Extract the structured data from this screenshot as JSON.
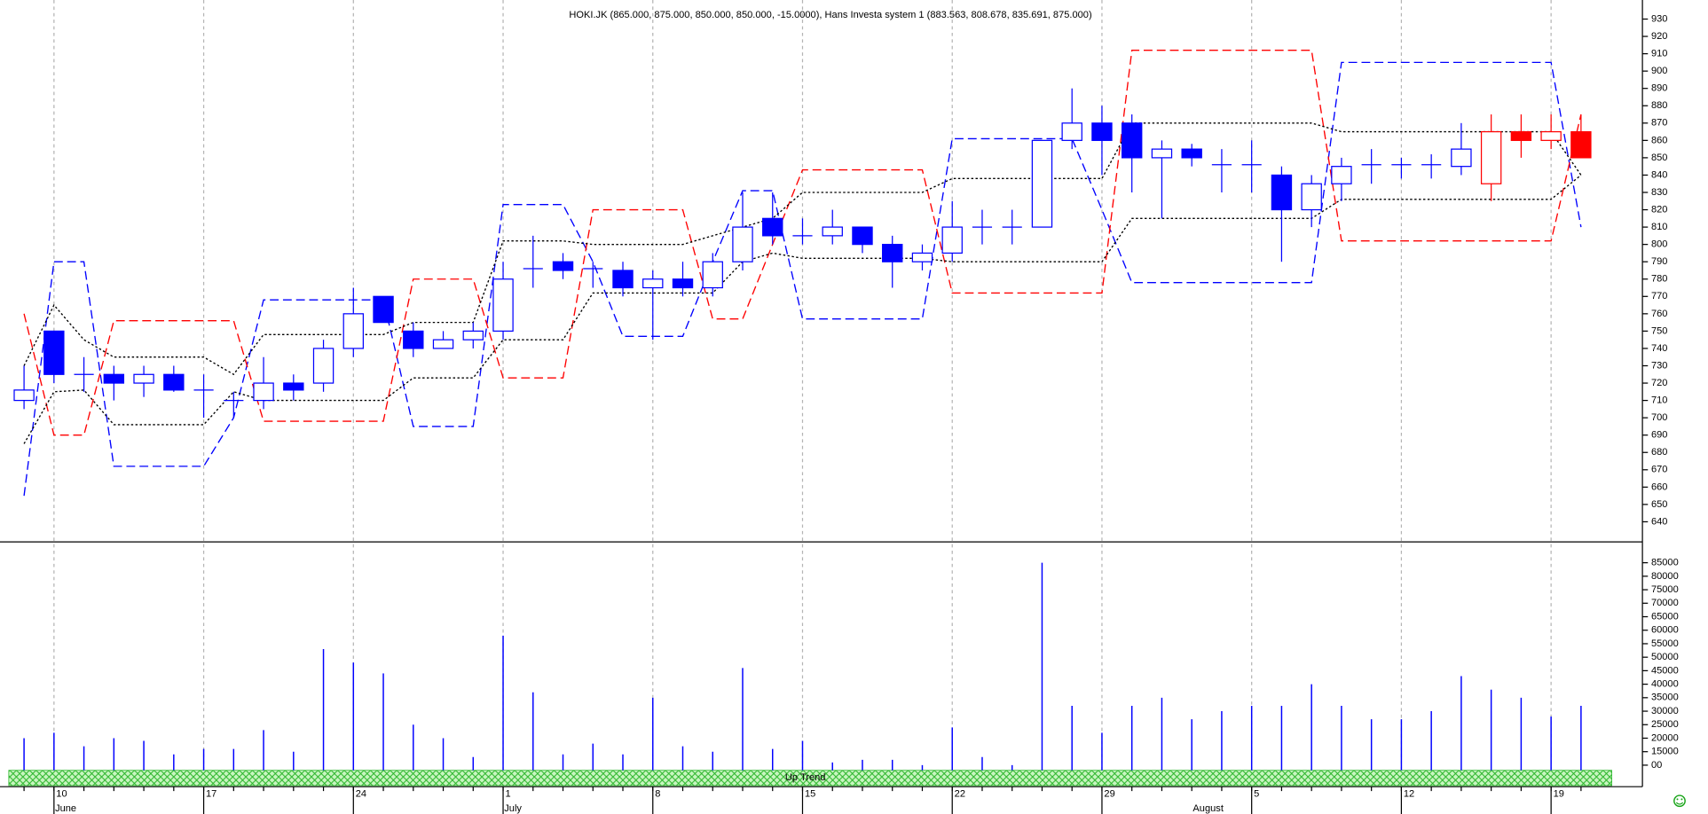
{
  "chart_data": {
    "type": "candlestick",
    "title": "HOKI.JK (865.000, 875.000, 850.000, 850.000, -15.0000), Hans Investa system 1 (883.563, 808.678, 835.691, 875.000)",
    "trend_label": "Up Trend",
    "categories": [
      null,
      "10",
      null,
      null,
      null,
      null,
      "17",
      null,
      null,
      null,
      null,
      "24",
      null,
      null,
      null,
      null,
      "1",
      null,
      null,
      null,
      null,
      "8",
      null,
      null,
      null,
      null,
      "15",
      null,
      null,
      null,
      null,
      "22",
      null,
      null,
      null,
      null,
      "29",
      null,
      null,
      null,
      null,
      "5",
      null,
      null,
      null,
      null,
      "12",
      null,
      null,
      null,
      null,
      "19",
      null
    ],
    "month_labels": [
      null,
      "June",
      null,
      null,
      null,
      null,
      null,
      null,
      null,
      null,
      null,
      null,
      null,
      null,
      null,
      null,
      "July",
      null,
      null,
      null,
      null,
      null,
      null,
      null,
      null,
      null,
      null,
      null,
      null,
      null,
      null,
      null,
      null,
      null,
      null,
      null,
      null,
      null,
      null,
      "August",
      null,
      null,
      null,
      null,
      null,
      null,
      null,
      null,
      null,
      null,
      null,
      null,
      null
    ],
    "open": [
      710,
      750,
      725,
      725,
      720,
      725,
      716,
      710,
      710,
      720,
      720,
      740,
      770,
      750,
      740,
      745,
      750,
      786,
      790,
      786,
      785,
      775,
      780,
      775,
      790,
      815,
      805,
      805,
      810,
      800,
      790,
      795,
      810,
      810,
      810,
      860,
      870,
      870,
      850,
      855,
      846,
      846,
      840,
      820,
      835,
      846,
      846,
      846,
      845,
      835,
      865,
      860,
      865
    ],
    "high": [
      730,
      750,
      735,
      730,
      730,
      730,
      725,
      715,
      735,
      725,
      745,
      775,
      770,
      755,
      750,
      755,
      790,
      805,
      795,
      790,
      790,
      785,
      790,
      795,
      830,
      830,
      815,
      820,
      810,
      805,
      800,
      825,
      820,
      820,
      860,
      890,
      880,
      875,
      860,
      858,
      855,
      860,
      845,
      840,
      850,
      855,
      850,
      852,
      870,
      875,
      875,
      875,
      875
    ],
    "low": [
      705,
      720,
      715,
      710,
      712,
      715,
      700,
      700,
      705,
      710,
      715,
      735,
      755,
      735,
      740,
      740,
      745,
      775,
      780,
      775,
      770,
      745,
      770,
      770,
      785,
      800,
      800,
      800,
      795,
      775,
      785,
      790,
      800,
      800,
      810,
      855,
      840,
      830,
      815,
      845,
      830,
      830,
      790,
      810,
      825,
      835,
      838,
      838,
      840,
      825,
      850,
      855,
      850
    ],
    "close": [
      716,
      725,
      725,
      720,
      725,
      716,
      716,
      710,
      720,
      716,
      740,
      760,
      755,
      740,
      745,
      750,
      780,
      786,
      785,
      786,
      775,
      780,
      775,
      790,
      810,
      805,
      805,
      810,
      800,
      790,
      795,
      810,
      810,
      810,
      860,
      870,
      860,
      850,
      855,
      850,
      846,
      846,
      820,
      835,
      845,
      846,
      846,
      846,
      855,
      865,
      860,
      865,
      850
    ],
    "colors": [
      "#0000ff",
      "#0000ff",
      "#0000ff",
      "#0000ff",
      "#0000ff",
      "#0000ff",
      "#0000ff",
      "#0000ff",
      "#0000ff",
      "#0000ff",
      "#0000ff",
      "#0000ff",
      "#0000ff",
      "#0000ff",
      "#0000ff",
      "#0000ff",
      "#0000ff",
      "#0000ff",
      "#0000ff",
      "#0000ff",
      "#0000ff",
      "#0000ff",
      "#0000ff",
      "#0000ff",
      "#0000ff",
      "#0000ff",
      "#0000ff",
      "#0000ff",
      "#0000ff",
      "#0000ff",
      "#0000ff",
      "#0000ff",
      "#0000ff",
      "#0000ff",
      "#0000ff",
      "#0000ff",
      "#0000ff",
      "#0000ff",
      "#0000ff",
      "#0000ff",
      "#0000ff",
      "#0000ff",
      "#0000ff",
      "#0000ff",
      "#0000ff",
      "#0000ff",
      "#0000ff",
      "#0000ff",
      "#0000ff",
      "#ff0000",
      "#ff0000",
      "#ff0000",
      "#ff0000"
    ],
    "bands": [
      {
        "color": "#0000ff",
        "dash": "dashed",
        "values": [
          655,
          790,
          790,
          672,
          672,
          672,
          672,
          700,
          768,
          768,
          768,
          768,
          768,
          695,
          695,
          695,
          823,
          823,
          823,
          790,
          747,
          747,
          747,
          790,
          831,
          831,
          757,
          757,
          757,
          757,
          757,
          861,
          861,
          861,
          861,
          861,
          820,
          778,
          778,
          778,
          778,
          778,
          778,
          778,
          905,
          905,
          905,
          905,
          905,
          905,
          905,
          905,
          810
        ]
      },
      {
        "color": "#ff0000",
        "dash": "dashed",
        "values": [
          760,
          690,
          690,
          756,
          756,
          756,
          756,
          756,
          698,
          698,
          698,
          698,
          698,
          780,
          780,
          780,
          723,
          723,
          723,
          820,
          820,
          820,
          820,
          757,
          757,
          800,
          843,
          843,
          843,
          843,
          843,
          772,
          772,
          772,
          772,
          772,
          772,
          912,
          912,
          912,
          912,
          912,
          912,
          912,
          802,
          802,
          802,
          802,
          802,
          802,
          802,
          802,
          875
        ]
      },
      {
        "color": "#000000",
        "dash": "dotted",
        "values": [
          730,
          765,
          745,
          735,
          735,
          735,
          735,
          725,
          748,
          748,
          748,
          748,
          748,
          755,
          755,
          755,
          802,
          802,
          802,
          800,
          800,
          800,
          800,
          805,
          810,
          815,
          830,
          830,
          830,
          830,
          830,
          838,
          838,
          838,
          838,
          838,
          838,
          870,
          870,
          870,
          870,
          870,
          870,
          870,
          865,
          865,
          865,
          865,
          865,
          865,
          865,
          865,
          840
        ]
      },
      {
        "color": "#000000",
        "dash": "dotted",
        "values": [
          685,
          715,
          716,
          696,
          696,
          696,
          696,
          715,
          710,
          710,
          710,
          710,
          710,
          723,
          723,
          723,
          745,
          745,
          745,
          772,
          772,
          772,
          772,
          772,
          790,
          795,
          792,
          792,
          792,
          792,
          792,
          790,
          790,
          790,
          790,
          790,
          790,
          815,
          815,
          815,
          815,
          815,
          815,
          815,
          826,
          826,
          826,
          826,
          826,
          826,
          826,
          826,
          840
        ]
      }
    ],
    "ylim": [
      629,
      941
    ],
    "yticks": [
      640,
      650,
      660,
      670,
      680,
      690,
      700,
      710,
      720,
      730,
      740,
      750,
      760,
      770,
      780,
      790,
      800,
      810,
      820,
      830,
      840,
      850,
      860,
      870,
      880,
      890,
      900,
      910,
      920,
      930
    ],
    "grid": true,
    "volume": {
      "color": "#0000ff",
      "values": [
        20000,
        22000,
        17000,
        20000,
        19000,
        14000,
        16000,
        16000,
        23000,
        15000,
        53000,
        48000,
        44000,
        25000,
        20000,
        13000,
        58000,
        37000,
        14000,
        18000,
        14000,
        35000,
        17000,
        15000,
        46000,
        16000,
        19000,
        11000,
        12000,
        12000,
        10000,
        24000,
        13000,
        10000,
        85000,
        32000,
        22000,
        32000,
        35000,
        27000,
        30000,
        32000,
        32000,
        40000,
        32000,
        27000,
        27000,
        30000,
        43000,
        38000,
        35000,
        28000,
        32000
      ],
      "ylim": [
        8100,
        92300
      ],
      "yticks": [
        {
          "value": 10000,
          "label": "00"
        },
        15000,
        20000,
        25000,
        30000,
        35000,
        40000,
        45000,
        50000,
        55000,
        60000,
        65000,
        70000,
        75000,
        80000,
        85000
      ]
    }
  }
}
